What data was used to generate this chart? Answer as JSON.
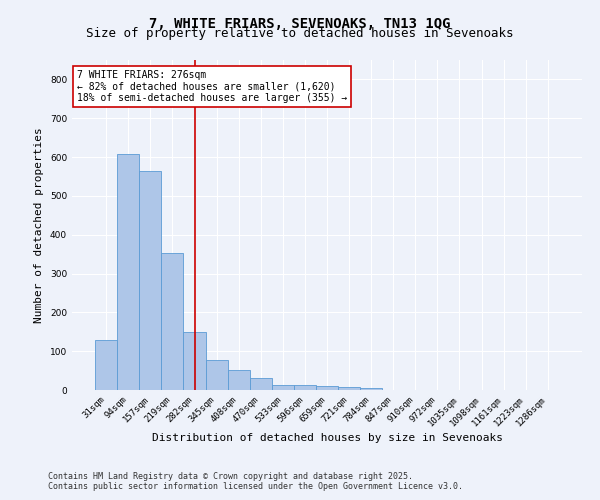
{
  "title_line1": "7, WHITE FRIARS, SEVENOAKS, TN13 1QG",
  "title_line2": "Size of property relative to detached houses in Sevenoaks",
  "xlabel": "Distribution of detached houses by size in Sevenoaks",
  "ylabel": "Number of detached properties",
  "categories": [
    "31sqm",
    "94sqm",
    "157sqm",
    "219sqm",
    "282sqm",
    "345sqm",
    "408sqm",
    "470sqm",
    "533sqm",
    "596sqm",
    "659sqm",
    "721sqm",
    "784sqm",
    "847sqm",
    "910sqm",
    "972sqm",
    "1035sqm",
    "1098sqm",
    "1161sqm",
    "1223sqm",
    "1286sqm"
  ],
  "values": [
    128,
    608,
    565,
    353,
    150,
    78,
    52,
    30,
    14,
    12,
    10,
    7,
    5,
    0,
    0,
    0,
    0,
    0,
    0,
    0,
    0
  ],
  "bar_color": "#aec6e8",
  "bar_edgecolor": "#5b9bd5",
  "vline_x": 4,
  "vline_color": "#cc0000",
  "annotation_text": "7 WHITE FRIARS: 276sqm\n← 82% of detached houses are smaller (1,620)\n18% of semi-detached houses are larger (355) →",
  "annotation_box_color": "#ffffff",
  "annotation_box_edgecolor": "#cc0000",
  "footnote1": "Contains HM Land Registry data © Crown copyright and database right 2025.",
  "footnote2": "Contains public sector information licensed under the Open Government Licence v3.0.",
  "ylim": [
    0,
    850
  ],
  "yticks": [
    0,
    100,
    200,
    300,
    400,
    500,
    600,
    700,
    800
  ],
  "background_color": "#eef2fa",
  "grid_color": "#ffffff",
  "title_fontsize": 10,
  "subtitle_fontsize": 9,
  "axis_label_fontsize": 8,
  "tick_fontsize": 6.5,
  "annotation_fontsize": 7,
  "footnote_fontsize": 6
}
